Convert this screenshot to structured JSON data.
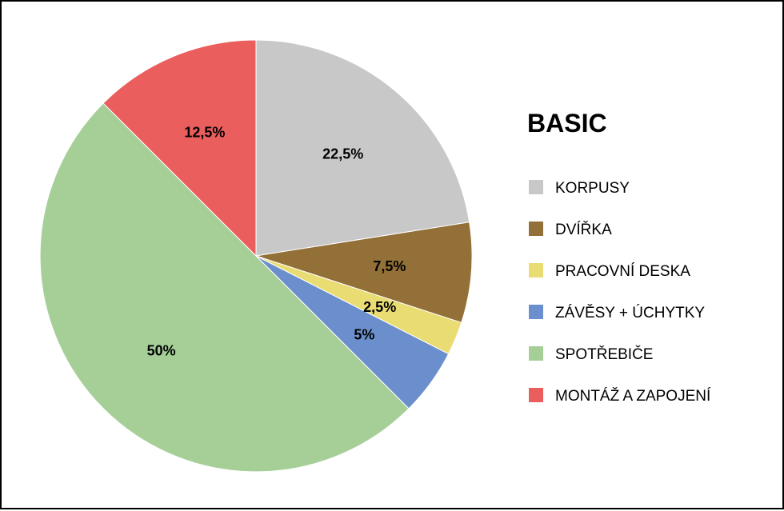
{
  "chart_data": {
    "type": "pie",
    "title": "BASIC",
    "legend_position": "right",
    "start_angle": "12 o'clock",
    "direction": "clockwise",
    "slices": [
      {
        "label": "KORPUSY",
        "value": 22.5,
        "display": "22,5%",
        "color": "#c8c8c8"
      },
      {
        "label": "DVÍŘKA",
        "value": 7.5,
        "display": "7,5%",
        "color": "#927037"
      },
      {
        "label": "PRACOVNÍ DESKA",
        "value": 2.5,
        "display": "2,5%",
        "color": "#e9dc72"
      },
      {
        "label": "ZÁVĚSY + ÚCHYTKY",
        "value": 5,
        "display": "5%",
        "color": "#6b8fcc"
      },
      {
        "label": "SPOTŘEBIČE",
        "value": 50,
        "display": "50%",
        "color": "#a6cf98"
      },
      {
        "label": "MONTÁŽ A ZAPOJENÍ",
        "value": 12.5,
        "display": "12,5%",
        "color": "#ea5e5d"
      }
    ]
  }
}
